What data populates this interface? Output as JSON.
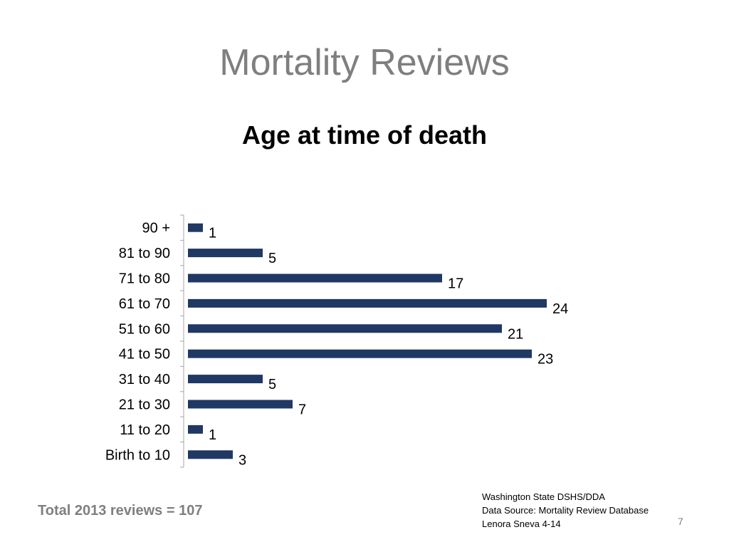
{
  "slide": {
    "title": "Mortality Reviews",
    "total_note": "Total 2013 reviews = 107",
    "source_lines": [
      "Washington State DSHS/DDA",
      "Data Source: Mortality Review Database",
      "Lenora Sneva 4-14"
    ],
    "page_number": "7"
  },
  "chart_data": {
    "type": "bar",
    "orientation": "horizontal",
    "title": "Age at time of death",
    "categories": [
      "90 +",
      "81 to 90",
      "71 to 80",
      "61 to 70",
      "51 to 60",
      "41 to 50",
      "31 to 40",
      "21 to 30",
      "11 to 20",
      "Birth to 10"
    ],
    "values": [
      1,
      5,
      17,
      24,
      21,
      23,
      5,
      7,
      1,
      3
    ],
    "xlim": [
      0,
      24
    ],
    "grid": false,
    "legend": "none",
    "bar_color": "#1f3864"
  }
}
